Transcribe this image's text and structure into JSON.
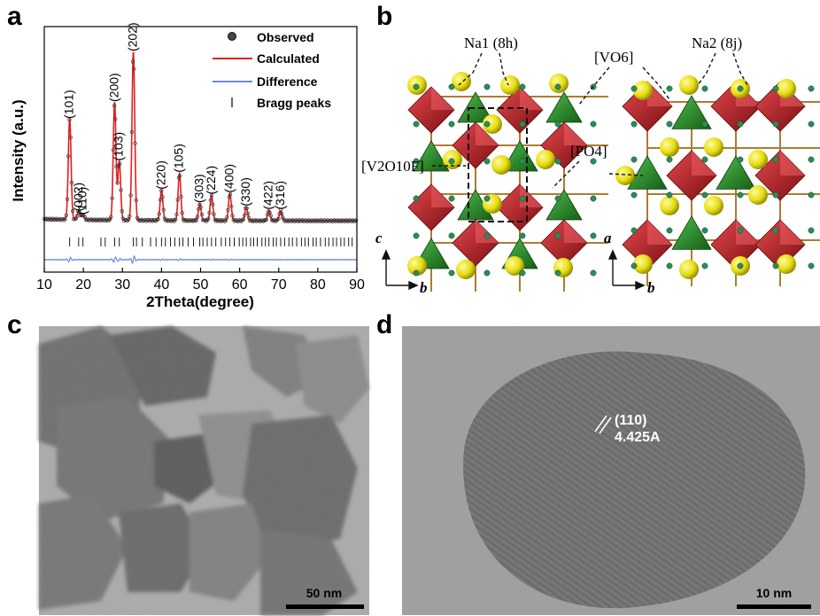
{
  "panels": {
    "a": "a",
    "b": "b",
    "c": "c",
    "d": "d"
  },
  "chart_data": {
    "type": "line",
    "xlabel": "2Theta(degree)",
    "ylabel": "Intensity (a.u.)",
    "xlim": [
      10,
      90
    ],
    "xticks": [
      10,
      20,
      30,
      40,
      50,
      60,
      70,
      80,
      90
    ],
    "legend": [
      "Observed",
      "Calculated",
      "Difference",
      "Bragg peaks"
    ],
    "legend_position": "top-right",
    "series_colors": {
      "observed": "#333333",
      "calculated": "#e02020",
      "difference": "#6f86e8",
      "bragg": "#000000"
    },
    "peaks": [
      {
        "hkl": "(101)",
        "x": 16.5,
        "height": 0.6
      },
      {
        "hkl": "(002)",
        "x": 18.8,
        "height": 0.05
      },
      {
        "hkl": "(110)",
        "x": 19.9,
        "height": 0.03
      },
      {
        "hkl": "(200)",
        "x": 28.0,
        "height": 0.7
      },
      {
        "hkl": "(103)",
        "x": 29.2,
        "height": 0.35
      },
      {
        "hkl": "(202)",
        "x": 32.8,
        "height": 1.0
      },
      {
        "hkl": "(220)",
        "x": 40.0,
        "height": 0.18
      },
      {
        "hkl": "(105)",
        "x": 44.6,
        "height": 0.28
      },
      {
        "hkl": "(303)",
        "x": 49.8,
        "height": 0.1
      },
      {
        "hkl": "(224)",
        "x": 52.8,
        "height": 0.15
      },
      {
        "hkl": "(400)",
        "x": 57.5,
        "height": 0.16
      },
      {
        "hkl": "(330)",
        "x": 61.7,
        "height": 0.08
      },
      {
        "hkl": "(422)",
        "x": 67.5,
        "height": 0.06
      },
      {
        "hkl": "(316)",
        "x": 70.5,
        "height": 0.06
      }
    ],
    "bragg_positions": [
      16.5,
      18.8,
      19.9,
      24.5,
      25.6,
      28.0,
      29.2,
      32.8,
      33.6,
      35.1,
      37.2,
      38.6,
      40.0,
      41.0,
      42.3,
      43.4,
      44.6,
      45.5,
      46.8,
      48.2,
      49.8,
      50.6,
      51.7,
      52.8,
      53.9,
      55.3,
      56.4,
      57.5,
      58.6,
      59.9,
      60.8,
      61.7,
      62.8,
      63.6,
      64.5,
      65.7,
      66.6,
      67.5,
      68.6,
      69.4,
      70.5,
      71.5,
      72.6,
      73.5,
      74.6,
      75.8,
      76.7,
      77.6,
      78.8,
      79.6,
      80.7,
      81.9,
      82.8,
      83.9,
      84.8,
      85.9,
      86.8,
      87.9,
      88.8
    ]
  },
  "structure": {
    "labels": {
      "na1": "Na1 (8h)",
      "na2": "Na2 (8j)",
      "vo6": "[VO6]",
      "v2o10f": "[V2O10F]",
      "po4": "[PO4]"
    },
    "axes_left": {
      "up": "c",
      "right": "b"
    },
    "axes_right": {
      "up": "a",
      "right": "b"
    },
    "colors": {
      "vanadium_octahedra": "#c8262b",
      "phosphate_tetrahedra": "#2f8a2f",
      "sodium": "#e6dc14",
      "oxygen": "#2e8b57",
      "bond": "#b07b32"
    }
  },
  "tem_c": {
    "scalebar": "50 nm"
  },
  "tem_d": {
    "hkl": "(110)",
    "spacing": "4.425A",
    "scalebar": "10 nm"
  }
}
